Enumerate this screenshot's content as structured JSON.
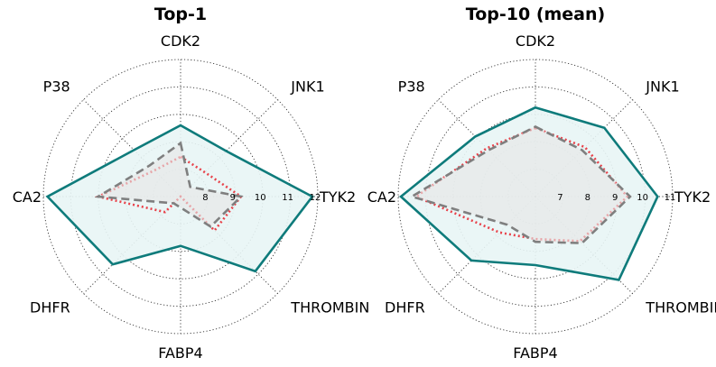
{
  "chart_data": [
    {
      "type": "radar",
      "title": "Top-1",
      "axes": [
        "CDK2",
        "JNK1",
        "TYK2",
        "THROMBIN",
        "FABP4",
        "DHFR",
        "CA2",
        "P38"
      ],
      "r_min": 7,
      "r_max": 12,
      "ticks": [
        8,
        9,
        10,
        11,
        12
      ],
      "series": [
        {
          "name": "teal",
          "color": "#0e7b7b",
          "style": "solid",
          "fill": "#e8f5f5",
          "values": [
            9.6,
            9.35,
            11.8,
            10.85,
            8.8,
            10.5,
            11.85,
            9.4
          ]
        },
        {
          "name": "red",
          "color": "#e8424a",
          "style": "dotted",
          "values": [
            8.45,
            8.25,
            9.2,
            8.75,
            7.0,
            7.8,
            10.0,
            8.35
          ]
        },
        {
          "name": "gray",
          "color": "#7f7f7f",
          "style": "dashed",
          "fill": "#e6e6e6",
          "values": [
            8.95,
            7.5,
            9.2,
            8.55,
            7.4,
            7.35,
            10.0,
            8.6
          ]
        }
      ]
    },
    {
      "type": "radar",
      "title": "Top-10 (mean)",
      "axes": [
        "CDK2",
        "JNK1",
        "TYK2",
        "THROMBIN",
        "FABP4",
        "DHFR",
        "CA2",
        "P38"
      ],
      "r_min": 6,
      "r_max": 11,
      "ticks": [
        7,
        8,
        9,
        10,
        11
      ],
      "series": [
        {
          "name": "teal",
          "color": "#0e7b7b",
          "style": "solid",
          "fill": "#e8f5f5",
          "values": [
            9.25,
            9.55,
            10.45,
            10.3,
            8.5,
            9.3,
            10.9,
            9.1
          ]
        },
        {
          "name": "red",
          "color": "#e8424a",
          "style": "dotted",
          "values": [
            8.5,
            8.55,
            9.35,
            8.3,
            7.55,
            7.85,
            10.35,
            8.5
          ]
        },
        {
          "name": "gray",
          "color": "#7f7f7f",
          "style": "dashed",
          "fill": "#e6e6e6",
          "values": [
            8.55,
            8.4,
            9.45,
            8.4,
            7.65,
            7.45,
            10.5,
            8.4
          ]
        }
      ]
    }
  ]
}
